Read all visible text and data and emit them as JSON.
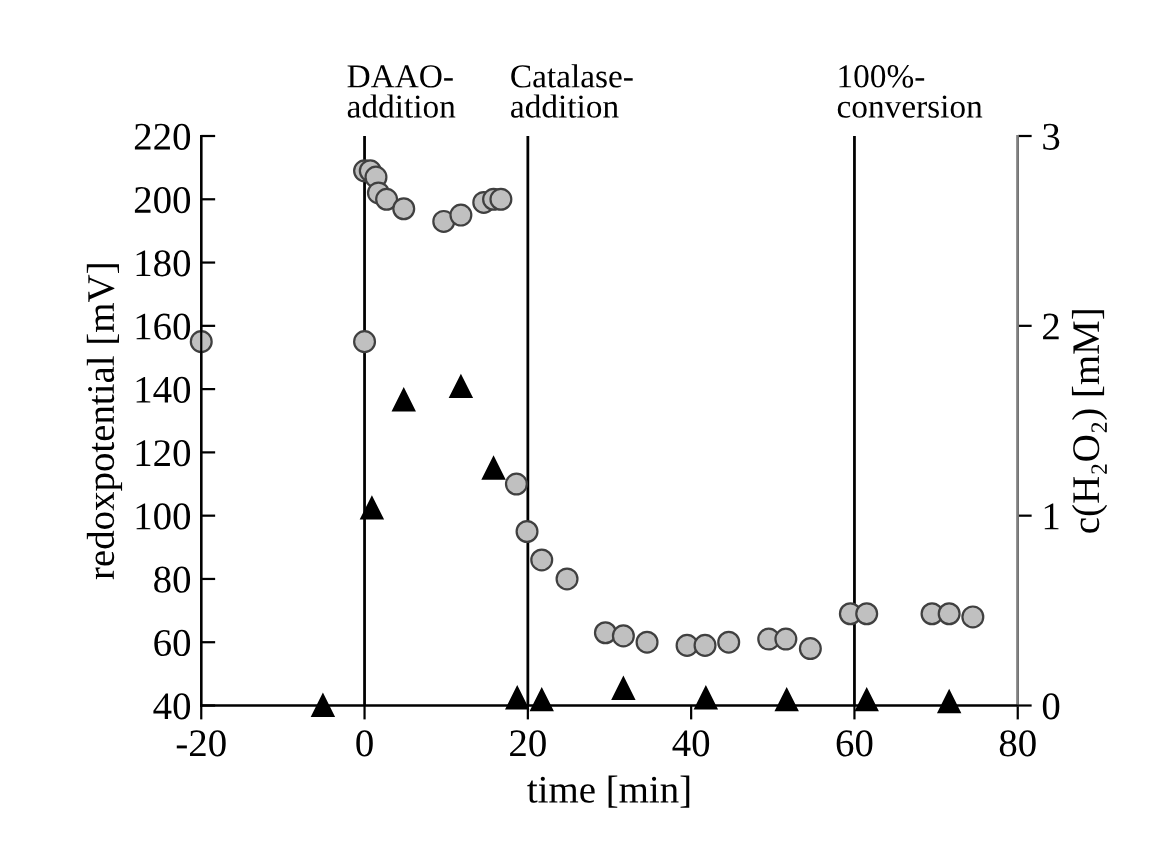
{
  "chart_data": {
    "type": "scatter",
    "xlabel": "time [min]",
    "ylabel": "redoxpotential [mV]",
    "y2label": "c(H₂O₂) [mM]",
    "xlim": [
      -20,
      80
    ],
    "xticks": [
      -20,
      0,
      20,
      40,
      60,
      80
    ],
    "ylim": [
      40,
      220
    ],
    "yticks": [
      40,
      60,
      80,
      100,
      120,
      140,
      160,
      180,
      200,
      220
    ],
    "y2lim": [
      0,
      3
    ],
    "y2ticks": [
      0,
      1,
      2,
      3
    ],
    "grid": false,
    "legend": false,
    "series": [
      {
        "color": "#c0c0c0",
        "marker": "circle",
        "x": [
          -20,
          0,
          0,
          0.7,
          1.4,
          1.7,
          2.7,
          4.8,
          9.7,
          11.8,
          14.6,
          15.8,
          16.7,
          18.6,
          19.9,
          21.7,
          24.8,
          29.5,
          31.7,
          34.6,
          39.5,
          41.7,
          44.6,
          49.5,
          51.6,
          54.6,
          59.5,
          61.5,
          69.5,
          71.6,
          74.5
        ],
        "values": [
          155,
          155,
          209,
          209,
          207,
          202,
          200,
          197,
          193,
          195,
          199,
          200,
          200,
          110,
          95,
          86,
          80,
          63,
          62,
          60,
          59,
          59,
          60,
          61,
          61,
          58,
          69,
          69,
          69,
          69,
          68
        ]
      },
      {
        "color": "#000000",
        "marker": "triangle",
        "axis": "y2",
        "x": [
          -5.1,
          0.9,
          4.8,
          11.8,
          15.8,
          18.7,
          21.7,
          31.7,
          41.8,
          51.7,
          61.5,
          71.6
        ],
        "values": [
          0,
          1.04,
          1.61,
          1.68,
          1.25,
          0.04,
          0.03,
          0.09,
          0.04,
          0.03,
          0.03,
          0.02
        ]
      }
    ],
    "ref_lines": [
      {
        "axis": "x",
        "value": 0,
        "label": "DAAO-\naddition",
        "color": "#000000"
      },
      {
        "axis": "x",
        "value": 20,
        "label": "Catalase-\naddition",
        "color": "#000000"
      },
      {
        "axis": "x",
        "value": 60,
        "label": "100%-\nconversion",
        "color": "#000000"
      }
    ]
  }
}
